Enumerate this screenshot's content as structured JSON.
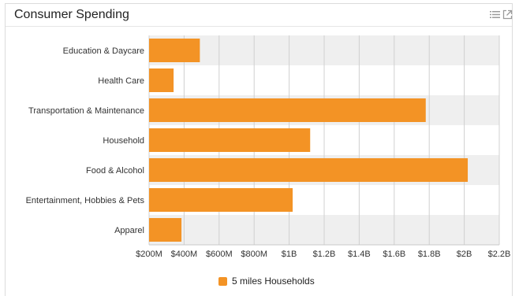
{
  "panel": {
    "title": "Consumer Spending",
    "icons": [
      "list-icon",
      "expand-icon"
    ]
  },
  "chart_data": {
    "type": "bar",
    "orientation": "horizontal",
    "categories": [
      "Education & Daycare",
      "Health Care",
      "Transportation & Maintenance",
      "Household",
      "Food & Alcohol",
      "Entertainment, Hobbies & Pets",
      "Apparel"
    ],
    "series": [
      {
        "name": "5 miles Households",
        "values": [
          490000000,
          340000000,
          1780000000,
          1120000000,
          2020000000,
          1020000000,
          385000000
        ]
      }
    ],
    "xlim": [
      200000000,
      2200000000
    ],
    "x_ticks": [
      200000000,
      400000000,
      600000000,
      800000000,
      1000000000,
      1200000000,
      1400000000,
      1600000000,
      1800000000,
      2000000000,
      2200000000
    ],
    "x_tick_labels": [
      "$200M",
      "$400M",
      "$600M",
      "$800M",
      "$1B",
      "$1.2B",
      "$1.4B",
      "$1.6B",
      "$1.8B",
      "$2B",
      "$2.2B"
    ],
    "grid": true,
    "legend_position": "bottom-center",
    "colors": {
      "bar": "#f39325",
      "band": "#efefef",
      "grid": "#d0d0d0"
    }
  }
}
